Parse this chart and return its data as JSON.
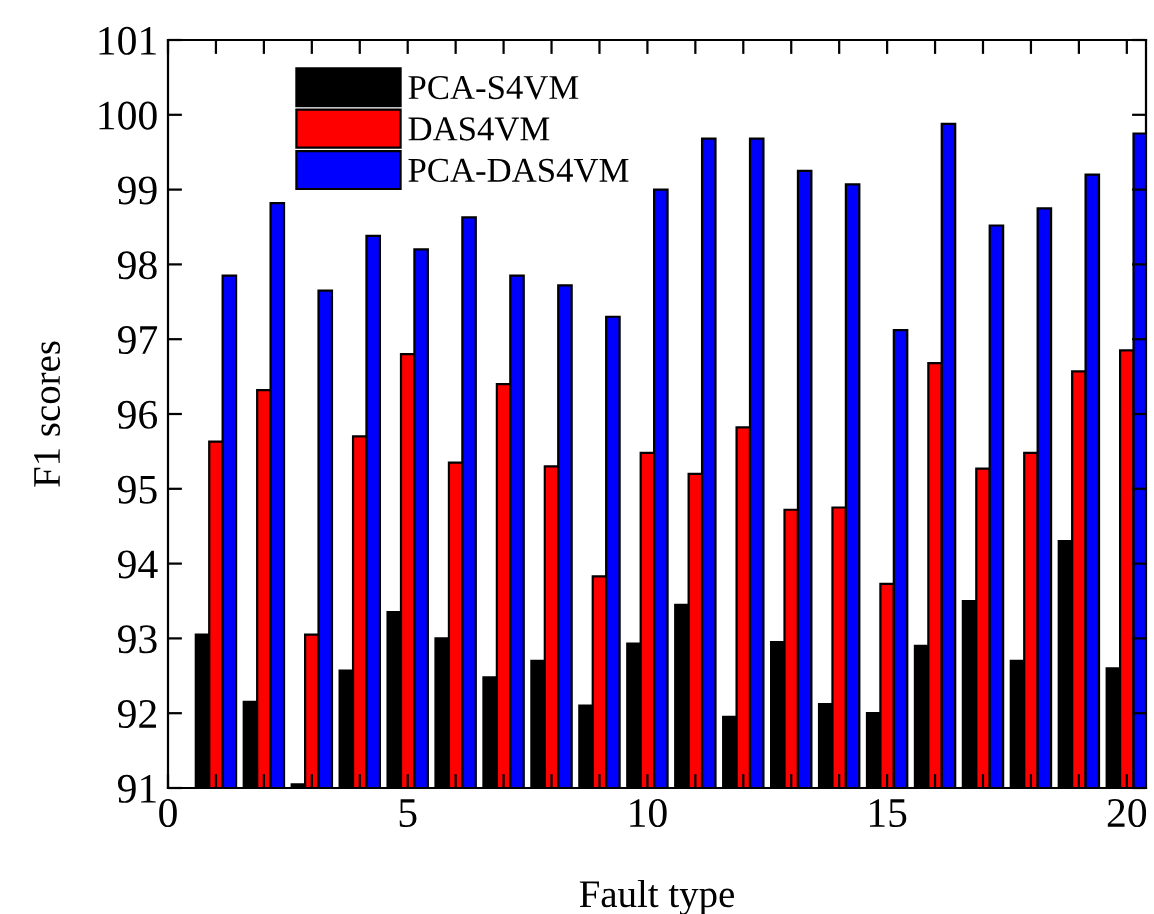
{
  "chart_data": {
    "type": "bar",
    "xlabel": "Fault type",
    "ylabel": "F1 scores",
    "x": [
      1,
      2,
      3,
      4,
      5,
      6,
      7,
      8,
      9,
      10,
      11,
      12,
      13,
      14,
      15,
      16,
      17,
      18,
      19,
      20
    ],
    "series": [
      {
        "name": "PCA-S4VM",
        "color": "#000000",
        "values": [
          93.05,
          92.15,
          91.05,
          92.57,
          93.35,
          93.0,
          92.48,
          92.7,
          92.1,
          92.93,
          93.45,
          91.95,
          92.95,
          92.12,
          92.0,
          92.9,
          93.5,
          92.7,
          94.3,
          92.6
        ]
      },
      {
        "name": "DAS4VM",
        "color": "#ff0000",
        "values": [
          95.63,
          96.32,
          93.05,
          95.7,
          96.8,
          95.35,
          96.4,
          95.3,
          93.83,
          95.48,
          95.2,
          95.82,
          94.72,
          94.75,
          93.73,
          96.68,
          95.27,
          95.48,
          96.57,
          96.85
        ]
      },
      {
        "name": "PCA-DAS4VM",
        "color": "#0000ff",
        "values": [
          97.85,
          98.82,
          97.65,
          98.38,
          98.2,
          98.63,
          97.85,
          97.72,
          97.3,
          99.0,
          99.68,
          99.68,
          99.25,
          99.07,
          97.12,
          99.88,
          98.52,
          98.75,
          99.2,
          99.75
        ]
      }
    ],
    "xlim": [
      0,
      20.4
    ],
    "xticks": [
      0,
      {
        "value": 1,
        "label": null
      },
      {
        "value": 2,
        "label": null
      },
      {
        "value": 3,
        "label": null
      },
      {
        "value": 4,
        "label": null
      },
      5,
      {
        "value": 6,
        "label": null
      },
      {
        "value": 7,
        "label": null
      },
      {
        "value": 8,
        "label": null
      },
      {
        "value": 9,
        "label": null
      },
      10,
      {
        "value": 11,
        "label": null
      },
      {
        "value": 12,
        "label": null
      },
      {
        "value": 13,
        "label": null
      },
      {
        "value": 14,
        "label": null
      },
      15,
      {
        "value": 16,
        "label": null
      },
      {
        "value": 17,
        "label": null
      },
      {
        "value": 18,
        "label": null
      },
      {
        "value": 19,
        "label": null
      },
      20
    ],
    "ylim": [
      91,
      101
    ],
    "yticks": [
      91,
      92,
      93,
      94,
      95,
      96,
      97,
      98,
      99,
      100,
      101
    ],
    "legend": "top left",
    "grid": false
  }
}
